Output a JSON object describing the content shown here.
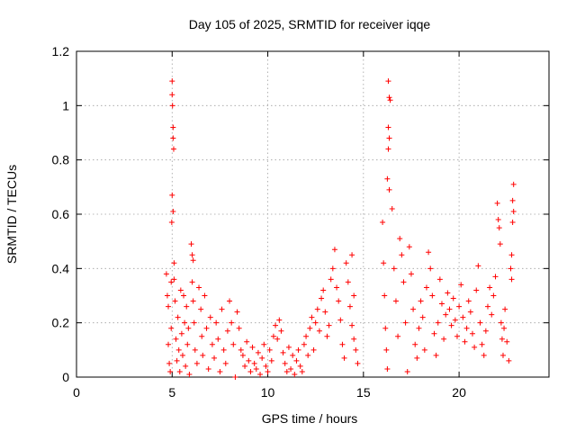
{
  "chart_data": {
    "type": "scatter",
    "title": "Day 105 of 2025, SRMTID for receiver iqqe",
    "xlabel": "GPS time / hours",
    "ylabel": "SRMTID / TECUs",
    "xlim": [
      0,
      24.7
    ],
    "ylim": [
      0,
      1.2
    ],
    "x_ticks": [
      0,
      5,
      10,
      15,
      20
    ],
    "x_tick_labels": [
      "0",
      "5",
      "10",
      "15",
      "20"
    ],
    "y_ticks": [
      0,
      0.2,
      0.4,
      0.6,
      0.8,
      1.0,
      1.2
    ],
    "y_tick_labels": [
      "0",
      "0.2",
      "0.4",
      "0.6",
      "0.8",
      "1",
      "1.2"
    ],
    "grid": true,
    "marker": "+",
    "color": "#ff0000",
    "series": [
      {
        "name": "SRMTID",
        "points": [
          [
            4.7,
            0.38
          ],
          [
            4.75,
            0.3
          ],
          [
            4.8,
            0.26
          ],
          [
            4.8,
            0.12
          ],
          [
            4.85,
            0.05
          ],
          [
            4.9,
            0.02
          ],
          [
            4.95,
            0.35
          ],
          [
            4.95,
            0.18
          ],
          [
            5.0,
            1.09
          ],
          [
            5.0,
            1.04
          ],
          [
            5.02,
            1.0
          ],
          [
            5.05,
            0.92
          ],
          [
            5.05,
            0.88
          ],
          [
            5.08,
            0.84
          ],
          [
            5.0,
            0.67
          ],
          [
            5.05,
            0.61
          ],
          [
            4.98,
            0.57
          ],
          [
            5.1,
            0.42
          ],
          [
            5.1,
            0.36
          ],
          [
            5.15,
            0.28
          ],
          [
            5.2,
            0.14
          ],
          [
            5.25,
            0.06
          ],
          [
            5.3,
            0.22
          ],
          [
            5.35,
            0.1
          ],
          [
            5.4,
            0.02
          ],
          [
            5.45,
            0.32
          ],
          [
            5.5,
            0.16
          ],
          [
            5.55,
            0.08
          ],
          [
            5.6,
            0.3
          ],
          [
            5.65,
            0.2
          ],
          [
            5.7,
            0.04
          ],
          [
            5.75,
            0.26
          ],
          [
            5.8,
            0.12
          ],
          [
            5.85,
            0.18
          ],
          [
            5.9,
            0.01
          ],
          [
            6.0,
            0.49
          ],
          [
            6.05,
            0.45
          ],
          [
            6.1,
            0.43
          ],
          [
            6.05,
            0.35
          ],
          [
            6.1,
            0.28
          ],
          [
            6.15,
            0.2
          ],
          [
            6.2,
            0.1
          ],
          [
            6.3,
            0.05
          ],
          [
            6.4,
            0.33
          ],
          [
            6.5,
            0.25
          ],
          [
            6.55,
            0.15
          ],
          [
            6.6,
            0.08
          ],
          [
            6.7,
            0.3
          ],
          [
            6.8,
            0.18
          ],
          [
            6.9,
            0.03
          ],
          [
            7.0,
            0.22
          ],
          [
            7.1,
            0.12
          ],
          [
            7.2,
            0.07
          ],
          [
            7.3,
            0.2
          ],
          [
            7.4,
            0.14
          ],
          [
            7.5,
            0.02
          ],
          [
            7.6,
            0.25
          ],
          [
            7.7,
            0.1
          ],
          [
            7.8,
            0.05
          ],
          [
            7.9,
            0.17
          ],
          [
            8.0,
            0.28
          ],
          [
            8.1,
            0.2
          ],
          [
            8.2,
            0.12
          ],
          [
            8.3,
            0.0
          ],
          [
            8.4,
            0.24
          ],
          [
            8.5,
            0.18
          ],
          [
            8.6,
            0.1
          ],
          [
            8.7,
            0.08
          ],
          [
            8.8,
            0.04
          ],
          [
            8.9,
            0.13
          ],
          [
            9.0,
            0.06
          ],
          [
            9.1,
            0.02
          ],
          [
            9.2,
            0.11
          ],
          [
            9.3,
            0.05
          ],
          [
            9.4,
            0.03
          ],
          [
            9.5,
            0.09
          ],
          [
            9.6,
            0.01
          ],
          [
            9.7,
            0.07
          ],
          [
            9.8,
            0.12
          ],
          [
            9.9,
            0.04
          ],
          [
            10.0,
            0.02
          ],
          [
            10.1,
            0.1
          ],
          [
            10.2,
            0.06
          ],
          [
            10.3,
            0.15
          ],
          [
            10.4,
            0.19
          ],
          [
            10.5,
            0.14
          ],
          [
            10.6,
            0.21
          ],
          [
            10.7,
            0.17
          ],
          [
            10.8,
            0.09
          ],
          [
            10.9,
            0.05
          ],
          [
            11.0,
            0.02
          ],
          [
            11.1,
            0.11
          ],
          [
            11.2,
            0.03
          ],
          [
            11.3,
            0.08
          ],
          [
            11.4,
            0.01
          ],
          [
            11.5,
            0.06
          ],
          [
            11.6,
            0.1
          ],
          [
            11.7,
            0.04
          ],
          [
            11.8,
            0.02
          ],
          [
            11.9,
            0.12
          ],
          [
            12.0,
            0.15
          ],
          [
            12.1,
            0.08
          ],
          [
            12.2,
            0.18
          ],
          [
            12.3,
            0.22
          ],
          [
            12.4,
            0.1
          ],
          [
            12.5,
            0.2
          ],
          [
            12.6,
            0.25
          ],
          [
            12.7,
            0.17
          ],
          [
            12.8,
            0.29
          ],
          [
            12.9,
            0.32
          ],
          [
            13.0,
            0.24
          ],
          [
            13.1,
            0.15
          ],
          [
            13.2,
            0.19
          ],
          [
            13.3,
            0.36
          ],
          [
            13.4,
            0.4
          ],
          [
            13.5,
            0.47
          ],
          [
            13.6,
            0.33
          ],
          [
            13.7,
            0.28
          ],
          [
            13.8,
            0.21
          ],
          [
            13.9,
            0.12
          ],
          [
            14.0,
            0.07
          ],
          [
            14.1,
            0.42
          ],
          [
            14.2,
            0.35
          ],
          [
            14.3,
            0.26
          ],
          [
            14.4,
            0.19
          ],
          [
            14.5,
            0.14
          ],
          [
            14.6,
            0.1
          ],
          [
            14.7,
            0.05
          ],
          [
            14.5,
            0.3
          ],
          [
            14.4,
            0.45
          ],
          [
            16.0,
            0.57
          ],
          [
            16.05,
            0.42
          ],
          [
            16.1,
            0.3
          ],
          [
            16.15,
            0.18
          ],
          [
            16.2,
            0.1
          ],
          [
            16.25,
            0.03
          ],
          [
            16.3,
            1.09
          ],
          [
            16.35,
            1.03
          ],
          [
            16.4,
            1.02
          ],
          [
            16.3,
            0.92
          ],
          [
            16.35,
            0.88
          ],
          [
            16.3,
            0.84
          ],
          [
            16.25,
            0.73
          ],
          [
            16.35,
            0.69
          ],
          [
            16.5,
            0.62
          ],
          [
            16.6,
            0.4
          ],
          [
            16.7,
            0.28
          ],
          [
            16.8,
            0.15
          ],
          [
            16.9,
            0.51
          ],
          [
            17.0,
            0.45
          ],
          [
            17.1,
            0.35
          ],
          [
            17.2,
            0.2
          ],
          [
            17.3,
            0.02
          ],
          [
            17.4,
            0.48
          ],
          [
            17.5,
            0.38
          ],
          [
            17.6,
            0.25
          ],
          [
            17.7,
            0.12
          ],
          [
            17.8,
            0.07
          ],
          [
            17.9,
            0.18
          ],
          [
            18.0,
            0.28
          ],
          [
            18.1,
            0.22
          ],
          [
            18.2,
            0.1
          ],
          [
            18.3,
            0.33
          ],
          [
            18.4,
            0.46
          ],
          [
            18.5,
            0.4
          ],
          [
            18.6,
            0.3
          ],
          [
            18.7,
            0.16
          ],
          [
            18.8,
            0.08
          ],
          [
            18.9,
            0.2
          ],
          [
            19.0,
            0.36
          ],
          [
            19.1,
            0.27
          ],
          [
            19.2,
            0.14
          ],
          [
            19.3,
            0.23
          ],
          [
            19.4,
            0.31
          ],
          [
            19.5,
            0.25
          ],
          [
            19.6,
            0.19
          ],
          [
            19.7,
            0.29
          ],
          [
            19.8,
            0.21
          ],
          [
            19.9,
            0.15
          ],
          [
            20.0,
            0.26
          ],
          [
            20.1,
            0.34
          ],
          [
            20.2,
            0.22
          ],
          [
            20.3,
            0.13
          ],
          [
            20.4,
            0.18
          ],
          [
            20.5,
            0.28
          ],
          [
            20.6,
            0.24
          ],
          [
            20.7,
            0.16
          ],
          [
            20.8,
            0.11
          ],
          [
            20.9,
            0.32
          ],
          [
            21.0,
            0.41
          ],
          [
            21.1,
            0.2
          ],
          [
            21.2,
            0.12
          ],
          [
            21.3,
            0.08
          ],
          [
            21.4,
            0.17
          ],
          [
            21.5,
            0.26
          ],
          [
            21.6,
            0.33
          ],
          [
            21.7,
            0.23
          ],
          [
            21.8,
            0.3
          ],
          [
            21.9,
            0.37
          ],
          [
            22.0,
            0.64
          ],
          [
            22.05,
            0.58
          ],
          [
            22.1,
            0.55
          ],
          [
            22.15,
            0.49
          ],
          [
            22.2,
            0.2
          ],
          [
            22.25,
            0.14
          ],
          [
            22.3,
            0.08
          ],
          [
            22.35,
            0.18
          ],
          [
            22.4,
            0.25
          ],
          [
            22.5,
            0.13
          ],
          [
            22.6,
            0.06
          ],
          [
            22.7,
            0.4
          ],
          [
            22.75,
            0.45
          ],
          [
            22.8,
            0.57
          ],
          [
            22.85,
            0.61
          ],
          [
            22.8,
            0.65
          ],
          [
            22.85,
            0.71
          ],
          [
            22.75,
            0.36
          ]
        ]
      }
    ]
  }
}
